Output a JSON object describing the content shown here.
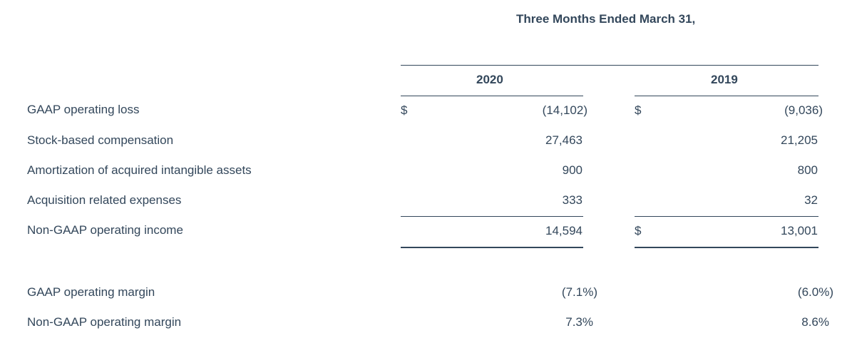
{
  "header": {
    "period": "Three Months Ended March 31,",
    "col_2020": "2020",
    "col_2019": "2019"
  },
  "rows": [
    {
      "label": "GAAP operating loss",
      "dollar_2020": "$",
      "v2020": "(14,102)",
      "dollar_2019": "$",
      "v2019": "(9,036)"
    },
    {
      "label": "Stock-based compensation",
      "dollar_2020": "",
      "v2020": "27,463",
      "dollar_2019": "",
      "v2019": "21,205"
    },
    {
      "label": "Amortization of acquired intangible assets",
      "dollar_2020": "",
      "v2020": "900",
      "dollar_2019": "",
      "v2019": "800"
    },
    {
      "label": "Acquisition related expenses",
      "dollar_2020": "",
      "v2020": "333",
      "dollar_2019": "",
      "v2019": "32"
    },
    {
      "label": "Non-GAAP operating income",
      "dollar_2020": "",
      "v2020": "14,594",
      "dollar_2019": "$",
      "v2019": "13,001"
    }
  ],
  "margins": [
    {
      "label": "GAAP operating margin",
      "v2020": "(7.1%)",
      "v2019": "(6.0%)"
    },
    {
      "label": "Non-GAAP operating margin",
      "v2020": "7.3%",
      "v2019": "8.6%"
    }
  ]
}
